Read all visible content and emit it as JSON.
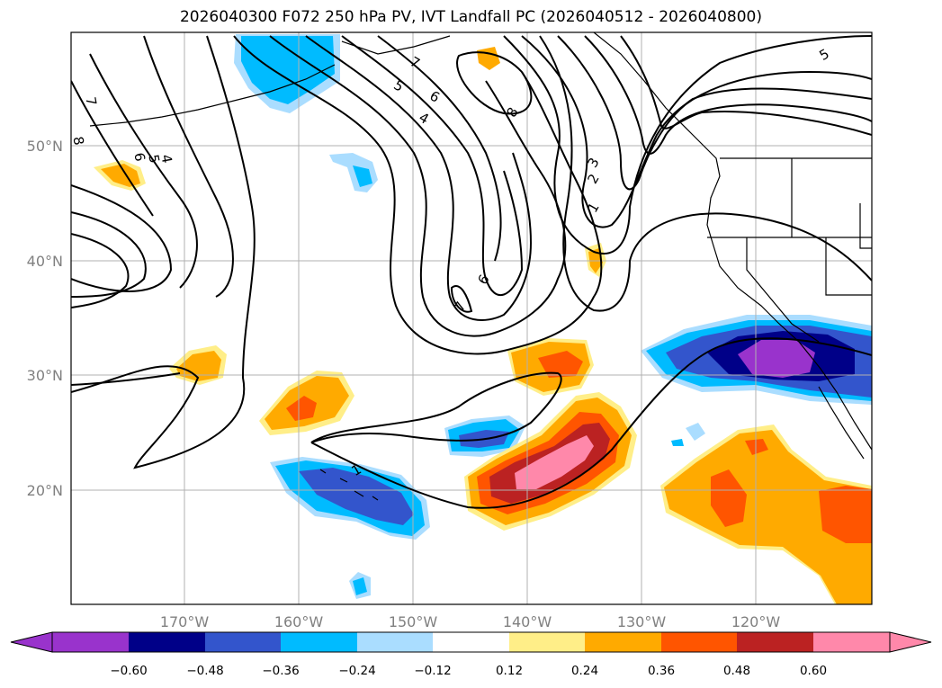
{
  "title": "2026040300 F072 250 hPa PV, IVT Landfall PC (2026040512 - 2026040800)",
  "longitude_ticks": [
    "170°W",
    "160°W",
    "150°W",
    "140°W",
    "130°W",
    "120°W"
  ],
  "latitude_ticks": [
    "50°N",
    "40°N",
    "30°N",
    "20°N"
  ],
  "colorbar": {
    "colors": [
      "#9933cc",
      "#000088",
      "#3355cc",
      "#00bbff",
      "#aaddff",
      "#ffffff",
      "#ffee88",
      "#ffaa00",
      "#ff5500",
      "#bb2222",
      "#ff88aa"
    ],
    "extend_min_color": "#9933cc",
    "extend_max_color": "#ff88aa",
    "tick_labels": [
      "−0.60",
      "−0.48",
      "−0.36",
      "−0.24",
      "−0.12",
      "0.12",
      "0.24",
      "0.36",
      "0.48",
      "0.60"
    ]
  },
  "contour_labels": [
    "7",
    "8",
    "6",
    "5",
    "4",
    "5",
    "7",
    "6",
    "4",
    "8",
    "3",
    "2",
    "1",
    "6",
    "7",
    "1",
    "5"
  ],
  "colors": {
    "grid": "#b0b0b0",
    "contour": "#000000",
    "frame": "#000000"
  }
}
